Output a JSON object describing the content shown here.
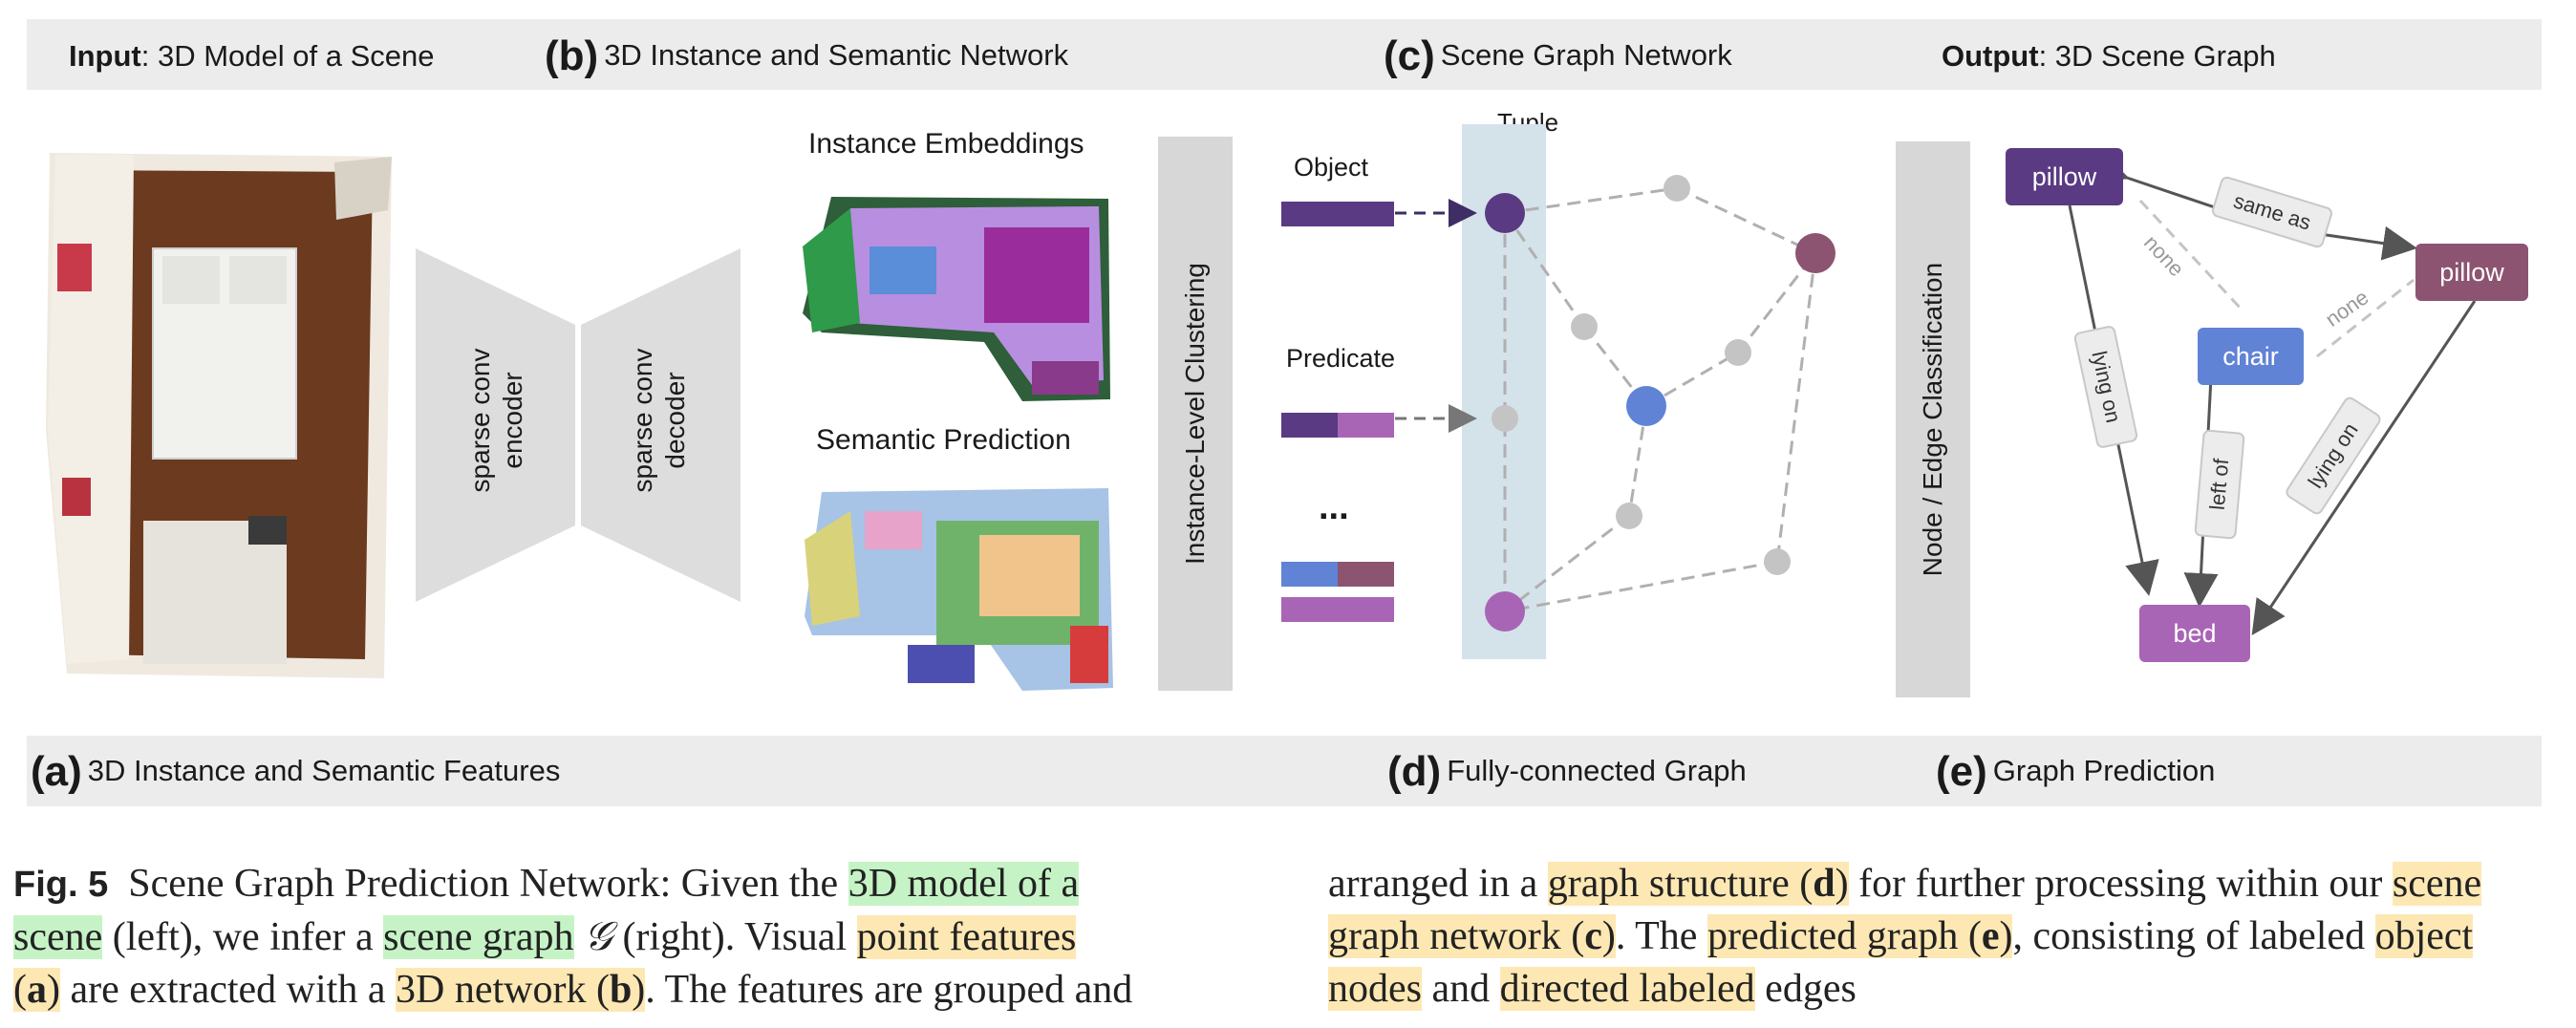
{
  "header": {
    "input_bold": "Input",
    "input_rest": ": 3D Model of a Scene",
    "b_letter": "(b)",
    "b_text": "3D Instance and Semantic Network",
    "c_letter": "(c)",
    "c_text": "Scene Graph Network",
    "output_bold": "Output",
    "output_rest": ": 3D Scene Graph"
  },
  "footer": {
    "a_letter": "(a)",
    "a_text": "3D Instance and Semantic Features",
    "d_letter": "(d)",
    "d_text": "Fully-connected Graph",
    "e_letter": "(e)",
    "e_text": "Graph Prediction"
  },
  "network": {
    "encoder": [
      "sparse conv",
      "encoder"
    ],
    "decoder": [
      "sparse conv",
      "decoder"
    ],
    "instance_embeddings": "Instance Embeddings",
    "semantic_prediction": "Semantic Prediction",
    "clustering": "Instance-Level Clustering"
  },
  "scene_graph_net": {
    "tuple": "Tuple",
    "object": "Object",
    "predicate": "Predicate",
    "ellipsis": "...",
    "classification": "Node / Edge Classification"
  },
  "graph": {
    "nodes": {
      "pillow1": "pillow",
      "pillow2": "pillow",
      "chair": "chair",
      "bed": "bed"
    },
    "edges": {
      "same_as": "same as",
      "none1": "none",
      "none2": "none",
      "lying_on1": "lying on",
      "left_of": "left of",
      "lying_on2": "lying on"
    },
    "colors": {
      "pillow1": "#5a3a82",
      "pillow2": "#8c5470",
      "chair": "#6183d6",
      "bed": "#a865b5"
    }
  },
  "caption": {
    "fig": "Fig. 5",
    "l1a": "Scene Graph Prediction Network: Given the",
    "l1b": "3D model of a",
    "l2a": "scene",
    "l2b": "(left), we infer a",
    "l2c": "scene graph",
    "l2d": "𝒢",
    "l2e": "(right). Visual",
    "l2f": "point features",
    "l3a": "(",
    "l3b": "a",
    "l3c": ")",
    "l3d": "are extracted with a",
    "l3e": "3D network (",
    "l3f": "b",
    "l3g": ")",
    "l3h": ". The features are grouped and",
    "r1a": "arranged in a",
    "r1b": "graph structure (",
    "r1c": "d",
    "r1d": ")",
    "r1e": "for further processing within our",
    "r1f": "scene",
    "r2a": "graph network (",
    "r2b": "c",
    "r2c": ")",
    "r2d": ". The",
    "r2e": "predicted graph (",
    "r2f": "e",
    "r2g": ")",
    "r2h": ", consisting of labeled",
    "r2i": "object",
    "r3a": "nodes",
    "r3b": "and",
    "r3c": "directed labeled",
    "r3d": "edges"
  }
}
